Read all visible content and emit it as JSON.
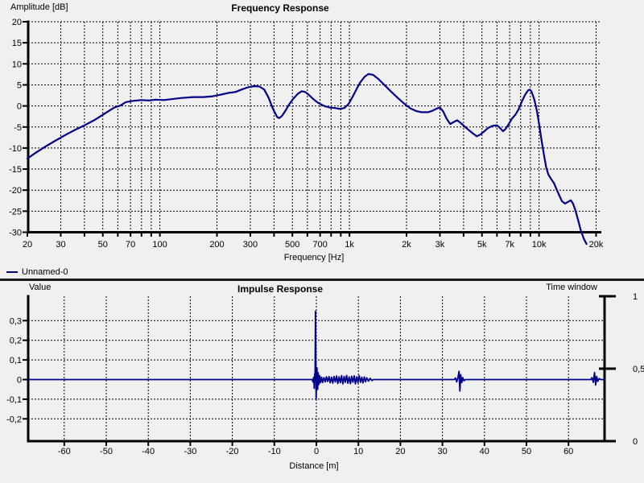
{
  "theme": {
    "background": "#f0f0f0",
    "plot_background": "#f0f0f0",
    "grid_color": "#000000",
    "axis_color": "#000000",
    "text_color": "#000000",
    "curve_color": "#00008B",
    "separator_color": "#1a1a1a"
  },
  "chart_data": [
    {
      "id": "frequency_response",
      "type": "line",
      "title": "Frequency Response",
      "xlabel": "Frequency [Hz]",
      "ylabel": "Amplitude [dB]",
      "legend_label": "Unnamed-0",
      "x_scale": "log",
      "xlim": [
        20,
        20000
      ],
      "ylim": [
        -30,
        20
      ],
      "grid": "dashed",
      "y_tick_values": [
        20,
        15,
        10,
        5,
        0,
        -5,
        -10,
        -15,
        -20,
        -25,
        -30
      ],
      "x_ticks": [
        {
          "v": 20,
          "l": "20"
        },
        {
          "v": 30,
          "l": "30"
        },
        {
          "v": 50,
          "l": "50"
        },
        {
          "v": 70,
          "l": "70"
        },
        {
          "v": 100,
          "l": "100"
        },
        {
          "v": 200,
          "l": "200"
        },
        {
          "v": 300,
          "l": "300"
        },
        {
          "v": 500,
          "l": "500"
        },
        {
          "v": 700,
          "l": "700"
        },
        {
          "v": 1000,
          "l": "1k"
        },
        {
          "v": 2000,
          "l": "2k"
        },
        {
          "v": 3000,
          "l": "3k"
        },
        {
          "v": 5000,
          "l": "5k"
        },
        {
          "v": 7000,
          "l": "7k"
        },
        {
          "v": 10000,
          "l": "10k"
        },
        {
          "v": 20000,
          "l": "20k"
        }
      ],
      "grid_x_values": [
        30,
        40,
        50,
        60,
        70,
        80,
        90,
        100,
        200,
        300,
        400,
        500,
        600,
        700,
        800,
        900,
        1000,
        2000,
        3000,
        4000,
        5000,
        6000,
        7000,
        8000,
        9000,
        10000,
        20000
      ],
      "series": [
        {
          "name": "Unnamed-0",
          "color": "#00008B",
          "points": [
            [
              20,
              -12.5
            ],
            [
              22,
              -11.2
            ],
            [
              25,
              -9.6
            ],
            [
              28,
              -8.3
            ],
            [
              32,
              -6.8
            ],
            [
              36,
              -5.6
            ],
            [
              40,
              -4.6
            ],
            [
              45,
              -3.4
            ],
            [
              50,
              -2.1
            ],
            [
              55,
              -0.9
            ],
            [
              58,
              -0.3
            ],
            [
              62,
              0.1
            ],
            [
              66,
              0.9
            ],
            [
              72,
              1.2
            ],
            [
              80,
              1.4
            ],
            [
              88,
              1.3
            ],
            [
              95,
              1.5
            ],
            [
              105,
              1.4
            ],
            [
              115,
              1.6
            ],
            [
              130,
              1.9
            ],
            [
              150,
              2.1
            ],
            [
              170,
              2.1
            ],
            [
              190,
              2.3
            ],
            [
              210,
              2.7
            ],
            [
              230,
              3.1
            ],
            [
              250,
              3.3
            ],
            [
              270,
              3.9
            ],
            [
              290,
              4.4
            ],
            [
              315,
              4.7
            ],
            [
              335,
              4.6
            ],
            [
              355,
              3.9
            ],
            [
              375,
              1.9
            ],
            [
              395,
              -0.7
            ],
            [
              415,
              -2.6
            ],
            [
              425,
              -2.9
            ],
            [
              440,
              -2.4
            ],
            [
              460,
              -1.1
            ],
            [
              480,
              0.3
            ],
            [
              505,
              1.7
            ],
            [
              535,
              2.9
            ],
            [
              560,
              3.5
            ],
            [
              585,
              3.3
            ],
            [
              615,
              2.5
            ],
            [
              645,
              1.6
            ],
            [
              675,
              0.9
            ],
            [
              705,
              0.4
            ],
            [
              745,
              -0.1
            ],
            [
              790,
              -0.4
            ],
            [
              840,
              -0.5
            ],
            [
              890,
              -0.7
            ],
            [
              940,
              -0.5
            ],
            [
              990,
              0.5
            ],
            [
              1040,
              2.2
            ],
            [
              1090,
              4.0
            ],
            [
              1140,
              5.6
            ],
            [
              1200,
              6.9
            ],
            [
              1260,
              7.6
            ],
            [
              1330,
              7.4
            ],
            [
              1420,
              6.4
            ],
            [
              1520,
              5.1
            ],
            [
              1650,
              3.5
            ],
            [
              1800,
              1.9
            ],
            [
              1950,
              0.5
            ],
            [
              2100,
              -0.6
            ],
            [
              2250,
              -1.2
            ],
            [
              2400,
              -1.5
            ],
            [
              2600,
              -1.5
            ],
            [
              2750,
              -1.1
            ],
            [
              2900,
              -0.6
            ],
            [
              3000,
              -0.4
            ],
            [
              3120,
              -1.3
            ],
            [
              3250,
              -3.0
            ],
            [
              3400,
              -4.3
            ],
            [
              3550,
              -3.8
            ],
            [
              3700,
              -3.4
            ],
            [
              3850,
              -4.0
            ],
            [
              4050,
              -4.9
            ],
            [
              4250,
              -5.7
            ],
            [
              4500,
              -6.6
            ],
            [
              4700,
              -7.2
            ],
            [
              4900,
              -6.8
            ],
            [
              5150,
              -6.0
            ],
            [
              5400,
              -5.2
            ],
            [
              5700,
              -4.7
            ],
            [
              6000,
              -4.6
            ],
            [
              6250,
              -5.3
            ],
            [
              6450,
              -6.0
            ],
            [
              6650,
              -5.5
            ],
            [
              6900,
              -4.4
            ],
            [
              7200,
              -3.0
            ],
            [
              7500,
              -2.1
            ],
            [
              7800,
              -0.8
            ],
            [
              8100,
              1.0
            ],
            [
              8450,
              2.7
            ],
            [
              8750,
              3.7
            ],
            [
              8950,
              3.9
            ],
            [
              9150,
              3.3
            ],
            [
              9450,
              1.5
            ],
            [
              9750,
              -1.2
            ],
            [
              10000,
              -4.2
            ],
            [
              10300,
              -8.0
            ],
            [
              10600,
              -11.5
            ],
            [
              10900,
              -14.5
            ],
            [
              11200,
              -16.3
            ],
            [
              11600,
              -17.4
            ],
            [
              12000,
              -18.4
            ],
            [
              12400,
              -19.9
            ],
            [
              12800,
              -21.3
            ],
            [
              13200,
              -22.6
            ],
            [
              13700,
              -23.2
            ],
            [
              14200,
              -22.8
            ],
            [
              14700,
              -22.4
            ],
            [
              15100,
              -23.2
            ],
            [
              15600,
              -25.0
            ],
            [
              16100,
              -27.2
            ],
            [
              16600,
              -29.5
            ],
            [
              17200,
              -31.5
            ],
            [
              17800,
              -32.8
            ]
          ]
        }
      ]
    },
    {
      "id": "impulse_response",
      "type": "line",
      "title": "Impulse Response",
      "xlabel": "Distance [m]",
      "ylabel": "Value",
      "ylabel_right": "Time window",
      "x_scale": "linear",
      "xlim": [
        -68.5,
        68.5
      ],
      "ylim": [
        -0.313,
        0.424
      ],
      "grid": "dashed",
      "x_ticks": [
        -60,
        -50,
        -40,
        -30,
        -20,
        -10,
        0,
        10,
        20,
        30,
        40,
        50,
        60
      ],
      "y_ticks": [
        {
          "v": 0.3,
          "l": "0,3"
        },
        {
          "v": 0.2,
          "l": "0,2"
        },
        {
          "v": 0.1,
          "l": "0,1"
        },
        {
          "v": 0,
          "l": "0"
        },
        {
          "v": -0.1,
          "l": "-0,1"
        },
        {
          "v": -0.2,
          "l": "-0,2"
        }
      ],
      "right_axis_ticks": [
        {
          "v": 1,
          "l": "1"
        },
        {
          "v": 0.5,
          "l": "0,5"
        },
        {
          "v": 0,
          "l": "0"
        }
      ],
      "series": [
        {
          "name": "Unnamed-0",
          "color": "#00008B",
          "points": [
            [
              -68.5,
              0
            ],
            [
              -20,
              0
            ],
            [
              -1.0,
              0
            ],
            [
              -0.8,
              -0.012
            ],
            [
              -0.65,
              0.012
            ],
            [
              -0.5,
              -0.045
            ],
            [
              -0.38,
              0.03
            ],
            [
              -0.3,
              0.0
            ],
            [
              -0.22,
              0.348
            ],
            [
              -0.12,
              0.05
            ],
            [
              -0.05,
              -0.1
            ],
            [
              0.05,
              -0.02
            ],
            [
              0.15,
              0.06
            ],
            [
              0.3,
              -0.05
            ],
            [
              0.45,
              0.035
            ],
            [
              0.6,
              -0.025
            ],
            [
              0.8,
              0.02
            ],
            [
              1.0,
              -0.015
            ],
            [
              1.25,
              0.012
            ],
            [
              1.5,
              -0.015
            ],
            [
              1.8,
              0.01
            ],
            [
              2.1,
              -0.012
            ],
            [
              2.4,
              0.014
            ],
            [
              2.7,
              -0.01
            ],
            [
              3.0,
              0.015
            ],
            [
              3.3,
              -0.016
            ],
            [
              3.6,
              0.012
            ],
            [
              3.9,
              -0.018
            ],
            [
              4.2,
              0.016
            ],
            [
              4.5,
              -0.012
            ],
            [
              4.8,
              0.018
            ],
            [
              5.1,
              -0.02
            ],
            [
              5.4,
              0.014
            ],
            [
              5.7,
              -0.016
            ],
            [
              6.0,
              0.02
            ],
            [
              6.3,
              -0.022
            ],
            [
              6.6,
              0.016
            ],
            [
              6.9,
              -0.014
            ],
            [
              7.2,
              0.021
            ],
            [
              7.5,
              -0.019
            ],
            [
              7.8,
              0.013
            ],
            [
              8.1,
              -0.021
            ],
            [
              8.4,
              0.017
            ],
            [
              8.7,
              -0.013
            ],
            [
              9.0,
              0.019
            ],
            [
              9.3,
              -0.022
            ],
            [
              9.6,
              0.014
            ],
            [
              9.9,
              -0.016
            ],
            [
              10.2,
              0.02
            ],
            [
              10.5,
              -0.014
            ],
            [
              10.8,
              0.012
            ],
            [
              11.1,
              -0.017
            ],
            [
              11.4,
              0.013
            ],
            [
              11.7,
              -0.011
            ],
            [
              12.0,
              0.009
            ],
            [
              12.4,
              -0.008
            ],
            [
              12.8,
              0.006
            ],
            [
              13.2,
              -0.005
            ],
            [
              13.6,
              0
            ],
            [
              20,
              0
            ],
            [
              32.8,
              0
            ],
            [
              33.1,
              0.008
            ],
            [
              33.4,
              -0.012
            ],
            [
              33.7,
              0.01
            ],
            [
              33.95,
              0.042
            ],
            [
              34.15,
              -0.058
            ],
            [
              34.35,
              0.025
            ],
            [
              34.6,
              -0.015
            ],
            [
              34.85,
              0.01
            ],
            [
              35.1,
              -0.006
            ],
            [
              35.5,
              0
            ],
            [
              50,
              0
            ],
            [
              65.3,
              0
            ],
            [
              65.6,
              0.01
            ],
            [
              65.9,
              -0.014
            ],
            [
              66.2,
              0.036
            ],
            [
              66.45,
              -0.028
            ],
            [
              66.7,
              0.016
            ],
            [
              66.95,
              -0.009
            ],
            [
              67.3,
              0.005
            ],
            [
              67.7,
              0
            ],
            [
              68.5,
              0
            ]
          ]
        }
      ]
    }
  ]
}
